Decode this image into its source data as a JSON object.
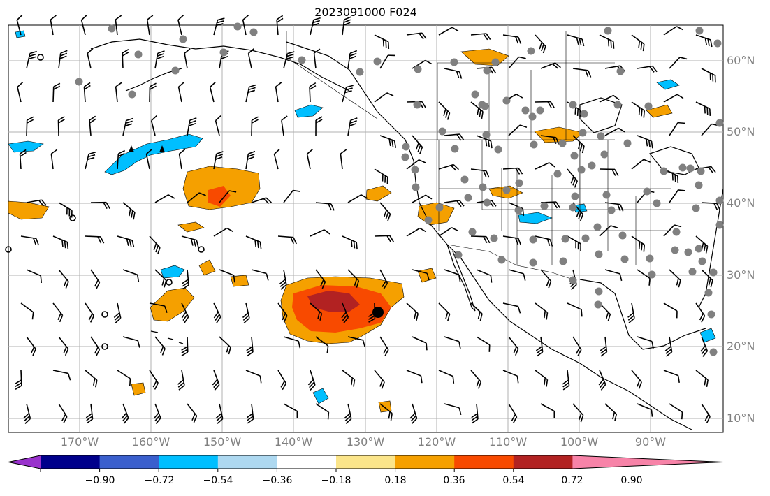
{
  "title": "2023091000 F024",
  "lat_labels": [
    "60°N",
    "50°N",
    "40°N",
    "30°N",
    "20°N",
    "10°N"
  ],
  "lon_labels": [
    "170°W",
    "160°W",
    "150°W",
    "140°W",
    "130°W",
    "120°W",
    "110°W",
    "100°W",
    "90°W"
  ],
  "colorbar": {
    "colors": [
      "#9932cc",
      "#00008b",
      "#3a5fcd",
      "#00bfff",
      "#add8f0",
      "#ffffff",
      "#fbe58a",
      "#f5a000",
      "#f84a00",
      "#b22222",
      "#f783a8"
    ],
    "tick_labels": [
      "−0.90",
      "−0.72",
      "−0.54",
      "−0.36",
      "−0.18",
      "0.18",
      "0.36",
      "0.54",
      "0.72",
      "0.90"
    ]
  },
  "colors": {
    "land_line": "#000000",
    "grid": "#b0b0b0",
    "station_dot": "#808080",
    "center_marker": "#000000"
  }
}
